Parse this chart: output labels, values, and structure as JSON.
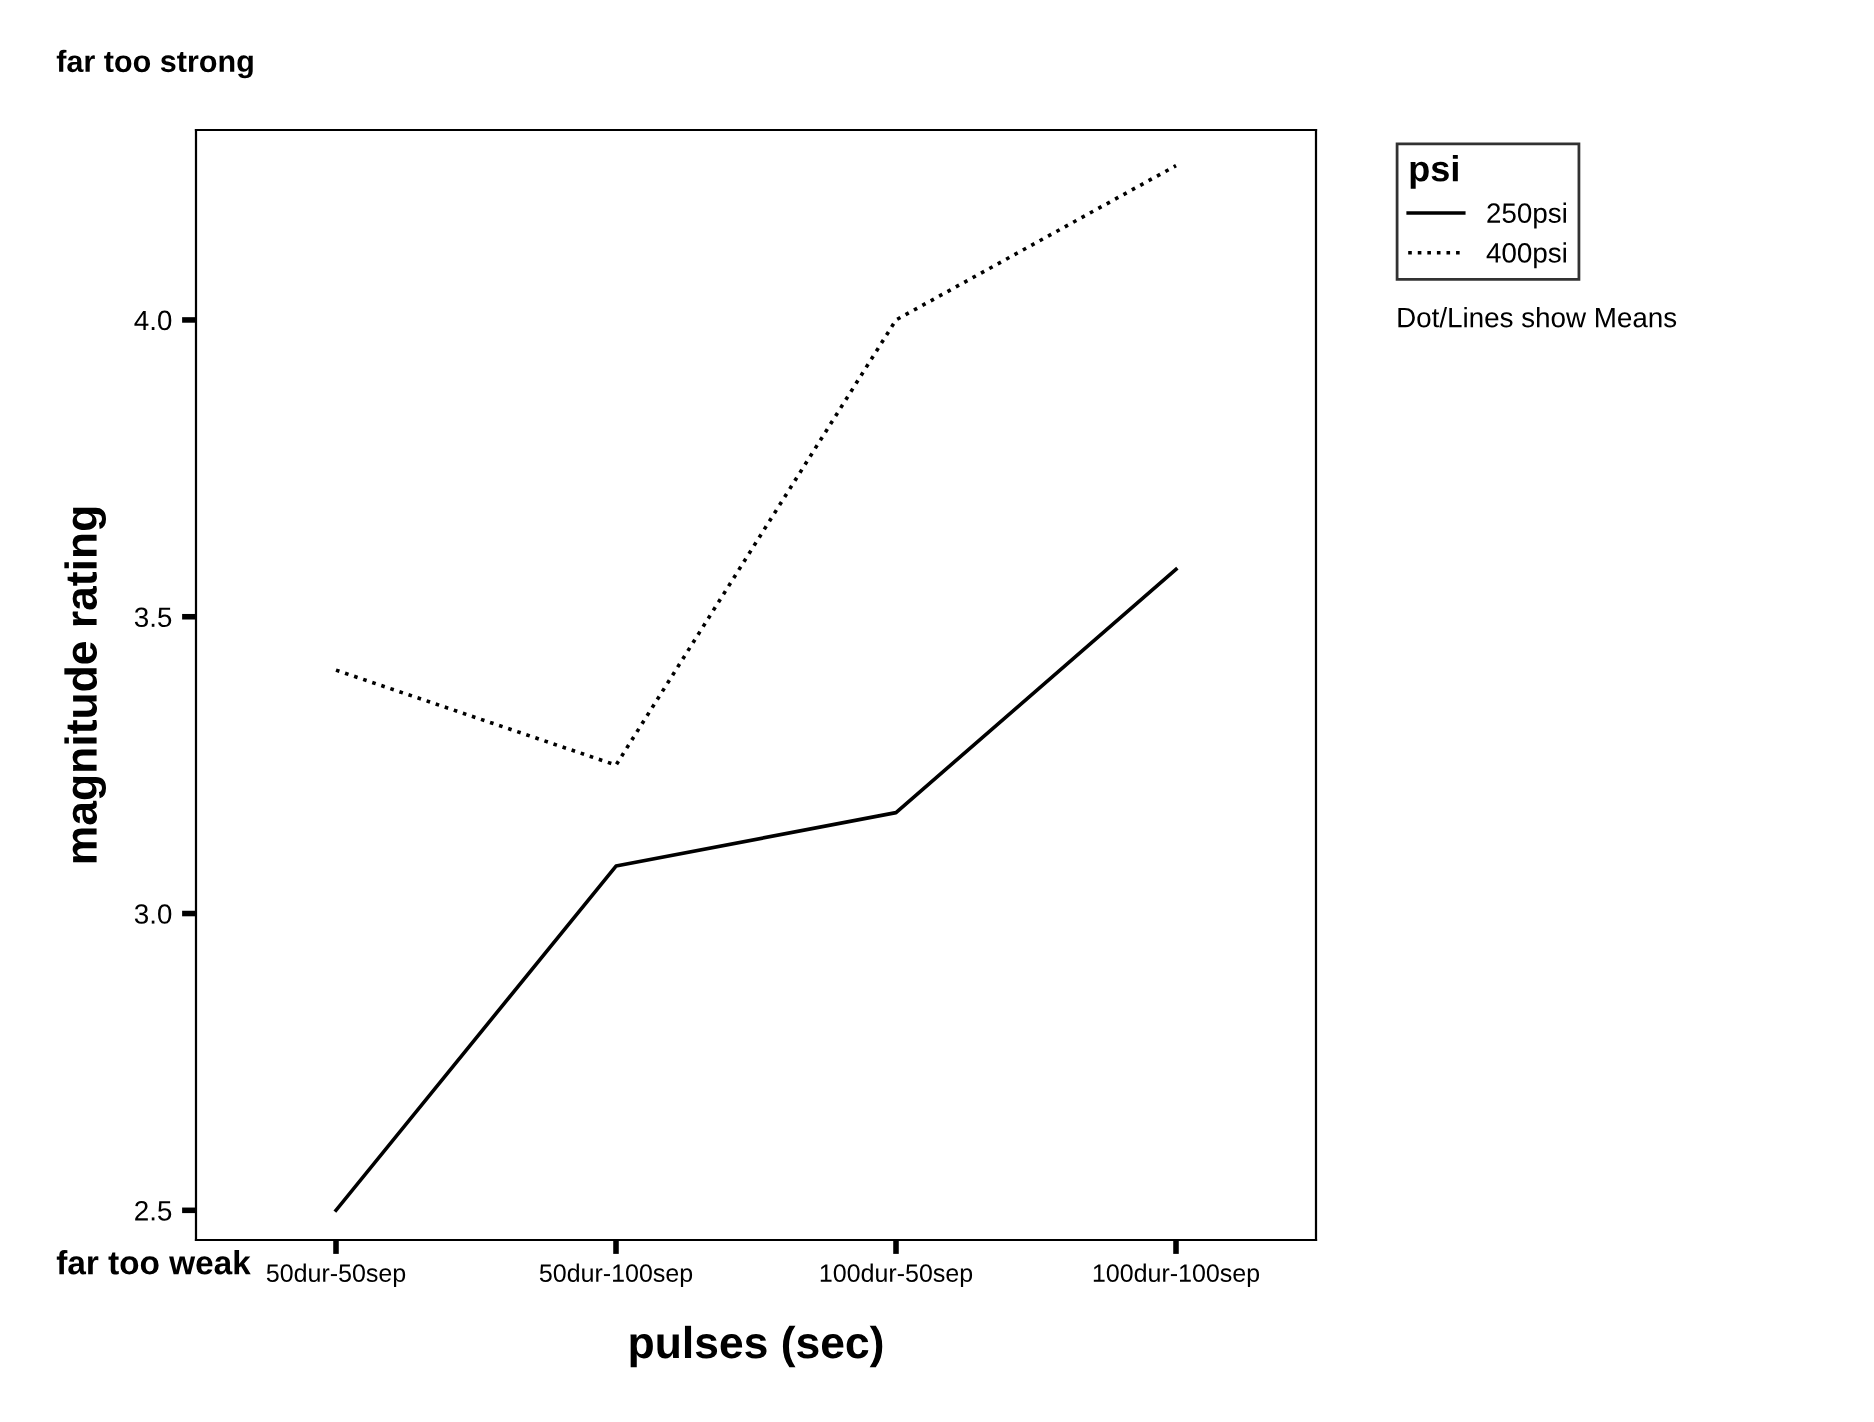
{
  "chart_data": {
    "type": "line",
    "xlabel": "pulses (sec)",
    "ylabel": "magnitude rating",
    "legend_title": "psi",
    "categories": [
      "50dur-50sep",
      "50dur-100sep",
      "100dur-50sep",
      "100dur-100sep"
    ],
    "series": [
      {
        "name": "250psi",
        "color": "#000000",
        "line_style": "solid",
        "values": [
          2.5,
          3.08,
          3.17,
          3.58
        ]
      },
      {
        "name": "400psi",
        "color": "#000000",
        "line_style": "dotted",
        "values": [
          3.41,
          3.25,
          4.0,
          4.26
        ]
      }
    ],
    "ylim": [
      2.45,
      4.32
    ],
    "yticks": [
      {
        "value": 2.5,
        "label": "2.5"
      },
      {
        "value": 3.0,
        "label": "3.0"
      },
      {
        "value": 3.5,
        "label": "3.5"
      },
      {
        "value": 4.0,
        "label": "4.0"
      }
    ],
    "grid": false,
    "legend": "top right",
    "marker": "none",
    "annotations": [
      "far too strong",
      "far too weak",
      "Dot/Lines show Means"
    ]
  }
}
